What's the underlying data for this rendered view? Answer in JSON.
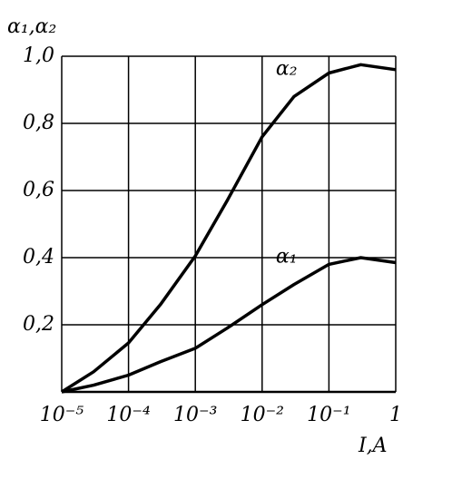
{
  "chart_data": {
    "type": "line",
    "y_label": "α₁,α₂",
    "x_label": "I,A",
    "xscale": "log",
    "x": [
      1e-05,
      3e-05,
      0.0001,
      0.0003,
      0.001,
      0.003,
      0.01,
      0.03,
      0.1,
      0.3,
      1
    ],
    "series": [
      {
        "name": "α₂",
        "color": "#000000",
        "values": [
          0,
          0.06,
          0.146,
          0.26,
          0.405,
          0.57,
          0.76,
          0.88,
          0.95,
          0.975,
          0.96
        ]
      },
      {
        "name": "α₁",
        "color": "#000000",
        "values": [
          0,
          0.02,
          0.05,
          0.09,
          0.13,
          0.19,
          0.26,
          0.32,
          0.38,
          0.4,
          0.385
        ]
      }
    ],
    "xlim": [
      1e-05,
      1
    ],
    "xticks": [
      {
        "value": 1e-05,
        "label": "10⁻⁵"
      },
      {
        "value": 0.0001,
        "label": "10⁻⁴"
      },
      {
        "value": 0.001,
        "label": "10⁻³"
      },
      {
        "value": 0.01,
        "label": "10⁻²"
      },
      {
        "value": 0.1,
        "label": "10⁻¹"
      },
      1
    ],
    "ylim": [
      0,
      1.0
    ],
    "yticks": [
      {
        "value": 0.2,
        "label": "0,2"
      },
      {
        "value": 0.4,
        "label": "0,4"
      },
      {
        "value": 0.6,
        "label": "0,6"
      },
      {
        "value": 0.8,
        "label": "0,8"
      },
      {
        "value": 1.0,
        "label": "1,0"
      }
    ],
    "grid": true
  }
}
